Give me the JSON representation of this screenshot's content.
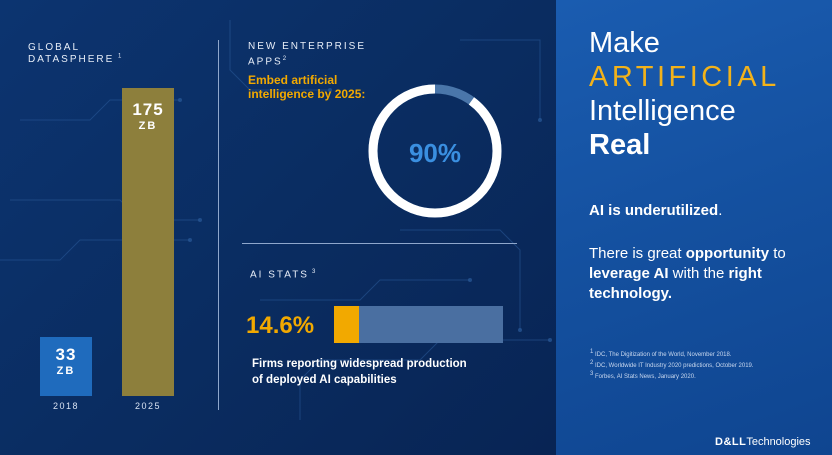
{
  "datasphere": {
    "title": "GLOBAL DATASPHERE",
    "ref": "1",
    "bars": [
      {
        "value": "33",
        "unit": "ZB",
        "year": "2018"
      },
      {
        "value": "175",
        "unit": "ZB",
        "year": "2025"
      }
    ]
  },
  "apps": {
    "title_line1": "NEW ENTERPRISE",
    "title_line2": "APPS",
    "ref": "2",
    "subtitle_line1": "Embed artificial",
    "subtitle_line2": "intelligence by 2025:",
    "percent_label": "90%",
    "percent_value": 90,
    "colors": {
      "ring": "#ffffff",
      "remainder": "#4a76aa",
      "label": "#3a8fe0"
    }
  },
  "ai_stats": {
    "title": "AI STATS",
    "ref": "3",
    "percent_label": "14.6%",
    "percent_value": 14.6,
    "description_line1": "Firms reporting widespread production",
    "description_line2": "of deployed AI capabilities",
    "colors": {
      "fill": "#f2a900",
      "track": "#4a6fa1"
    }
  },
  "headline": {
    "line1": "Make",
    "line2": "ARTIFICIAL",
    "line3": "Intelligence",
    "line4": "Real"
  },
  "message": {
    "underutilized_bold": "AI is underutilized",
    "underutilized_end": ".",
    "opp_1": "There is great ",
    "opp_2": "opportunity",
    "opp_3": " to ",
    "opp_4": "leverage AI",
    "opp_5": " with the ",
    "opp_6": "right technology."
  },
  "footnotes": [
    {
      "num": "1",
      "text": "IDC, The Digitization of the World, November 2018."
    },
    {
      "num": "2",
      "text": "IDC, Worldwide IT Industry 2020 predictions, October 2019."
    },
    {
      "num": "3",
      "text": "Forbes, AI Stats News, January 2020."
    }
  ],
  "brand": {
    "bold": "D&LL",
    "regular": "Technologies"
  },
  "colors": {
    "accent_gold": "#f2a900",
    "bar_2018": "#1f6bbd",
    "bar_2025": "#8d7f3c"
  }
}
